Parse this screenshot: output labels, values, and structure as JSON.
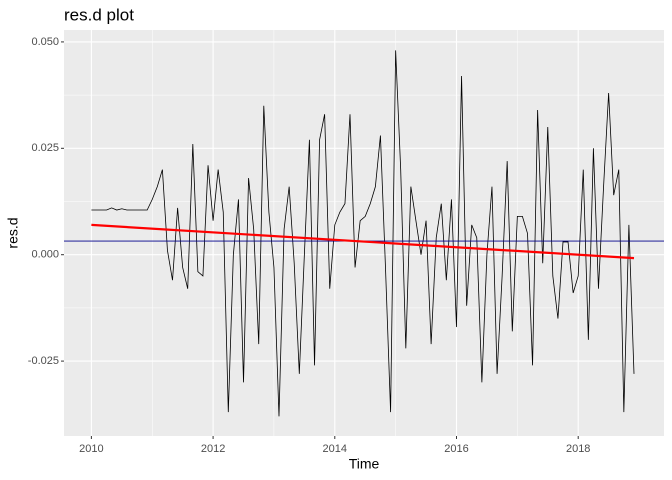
{
  "chart_data": {
    "type": "line",
    "title": "res.d plot",
    "xlabel": "Time",
    "ylabel": "res.d",
    "xlim": [
      2009.55,
      2019.41
    ],
    "ylim": [
      -0.0426,
      0.0528
    ],
    "xticks": [
      2010,
      2012,
      2014,
      2016,
      2018
    ],
    "yticks": [
      {
        "value": -0.025,
        "label": "-0.025"
      },
      {
        "value": 0,
        "label": "0.000"
      },
      {
        "value": 0.025,
        "label": "0.025"
      },
      {
        "value": 0.05,
        "label": "0.050"
      }
    ],
    "grid": true,
    "series": [
      {
        "color": "#000000",
        "width": 0.8,
        "x": [
          2010,
          2010.083,
          2010.167,
          2010.25,
          2010.333,
          2010.417,
          2010.5,
          2010.583,
          2010.667,
          2010.75,
          2010.833,
          2010.917,
          2011,
          2011.083,
          2011.167,
          2011.25,
          2011.333,
          2011.417,
          2011.5,
          2011.583,
          2011.667,
          2011.75,
          2011.833,
          2011.917,
          2012,
          2012.083,
          2012.167,
          2012.25,
          2012.333,
          2012.417,
          2012.5,
          2012.583,
          2012.667,
          2012.75,
          2012.833,
          2012.917,
          2013,
          2013.083,
          2013.167,
          2013.25,
          2013.333,
          2013.417,
          2013.5,
          2013.583,
          2013.667,
          2013.75,
          2013.833,
          2013.917,
          2014,
          2014.083,
          2014.167,
          2014.25,
          2014.333,
          2014.417,
          2014.5,
          2014.583,
          2014.667,
          2014.75,
          2014.833,
          2014.917,
          2015,
          2015.083,
          2015.167,
          2015.25,
          2015.333,
          2015.417,
          2015.5,
          2015.583,
          2015.667,
          2015.75,
          2015.833,
          2015.917,
          2016,
          2016.083,
          2016.167,
          2016.25,
          2016.333,
          2016.417,
          2016.5,
          2016.583,
          2016.667,
          2016.75,
          2016.833,
          2016.917,
          2017,
          2017.083,
          2017.167,
          2017.25,
          2017.333,
          2017.417,
          2017.5,
          2017.583,
          2017.667,
          2017.75,
          2017.833,
          2017.917,
          2018,
          2018.083,
          2018.167,
          2018.25,
          2018.333,
          2018.417,
          2018.5,
          2018.583,
          2018.667,
          2018.75,
          2018.833,
          2018.917
        ],
        "values": [
          0.0105,
          0.0105,
          0.0105,
          0.0105,
          0.011,
          0.0105,
          0.0108,
          0.0105,
          0.0105,
          0.0105,
          0.0105,
          0.0105,
          0.013,
          0.016,
          0.02,
          0.001,
          -0.006,
          0.011,
          -0.003,
          -0.008,
          0.026,
          -0.004,
          -0.005,
          0.021,
          0.008,
          0.02,
          0.01,
          -0.037,
          0,
          0.013,
          -0.03,
          0.018,
          0.006,
          -0.021,
          0.035,
          0.01,
          -0.003,
          -0.038,
          0.006,
          0.016,
          -0.002,
          -0.028,
          0,
          0.027,
          -0.026,
          0.027,
          0.033,
          -0.008,
          0.007,
          0.01,
          0.012,
          0.033,
          -0.003,
          0.008,
          0.009,
          0.012,
          0.016,
          0.028,
          -0.003,
          -0.037,
          0.048,
          0.02,
          -0.022,
          0.016,
          0.008,
          0,
          0.008,
          -0.021,
          0.004,
          0.012,
          -0.006,
          0.013,
          -0.017,
          0.042,
          -0.012,
          0.007,
          0.004,
          -0.03,
          0,
          0.016,
          -0.028,
          -0.005,
          0.022,
          -0.018,
          0.009,
          0.009,
          0.005,
          -0.026,
          0.034,
          -0.002,
          0.03,
          -0.005,
          -0.015,
          0.003,
          0.003,
          -0.009,
          -0.005,
          0.02,
          -0.02,
          0.025,
          -0.008,
          0.016,
          0.038,
          0.014,
          0.02,
          -0.037,
          0.007,
          -0.028
        ]
      },
      {
        "color": "#ff0000",
        "width": 2.2,
        "x": [
          2010,
          2018.917
        ],
        "values": [
          0.007,
          -0.0008
        ]
      }
    ],
    "hline": {
      "value": 0.0032,
      "color": "#00008b"
    }
  }
}
